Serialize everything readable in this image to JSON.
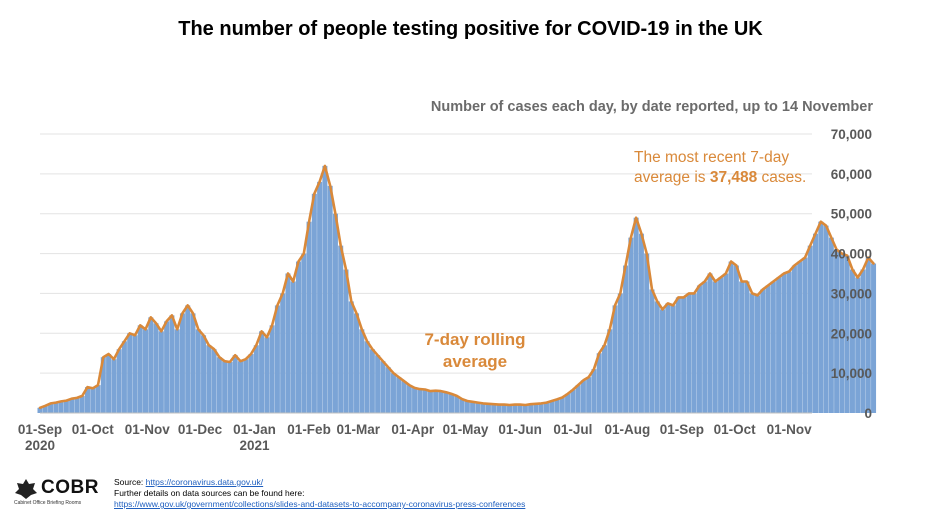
{
  "title": "The number of people testing positive for COVID-19 in the UK",
  "subtitle": "Number of cases each day, by date reported, up to 14 November",
  "annotations": {
    "recent_pre": "The most recent 7-day average is ",
    "recent_value": "37,488",
    "recent_post": " cases.",
    "rolling": "7-day rolling average"
  },
  "footer": {
    "source_label": "Source: ",
    "source_link": "https://coronavirus.data.gov.uk/",
    "details": "Further details on data sources can be found here:",
    "details_link": "https://www.gov.uk/government/collections/slides-and-datasets-to-accompany-coronavirus-press-conferences"
  },
  "logo": {
    "name": "COBR",
    "tagline": "Cabinet Office Briefing Rooms"
  },
  "colors": {
    "bars": "#7ba4d6",
    "line": "#d9893a",
    "grid": "#e3e3e3",
    "axis_text": "#595959"
  },
  "chart_data": {
    "type": "bar",
    "title": "The number of people testing positive for COVID-19 in the UK",
    "subtitle": "Number of cases each day, by date reported, up to 14 November",
    "xlabel": "",
    "ylabel": "",
    "ylim": [
      0,
      70000
    ],
    "y_ticks": [
      0,
      10000,
      20000,
      30000,
      40000,
      50000,
      60000,
      70000
    ],
    "y_tick_labels": [
      "0",
      "10,000",
      "20,000",
      "30,000",
      "40,000",
      "50,000",
      "60,000",
      "70,000"
    ],
    "x_tick_labels": [
      {
        "label": "01-Sep",
        "year": "2020",
        "date": "2020-09-01"
      },
      {
        "label": "01-Oct",
        "year": "",
        "date": "2020-10-01"
      },
      {
        "label": "01-Nov",
        "year": "",
        "date": "2020-11-01"
      },
      {
        "label": "01-Dec",
        "year": "",
        "date": "2020-12-01"
      },
      {
        "label": "01-Jan",
        "year": "2021",
        "date": "2021-01-01"
      },
      {
        "label": "01-Feb",
        "year": "",
        "date": "2021-02-01"
      },
      {
        "label": "01-Mar",
        "year": "",
        "date": "2021-03-01"
      },
      {
        "label": "01-Apr",
        "year": "",
        "date": "2021-04-01"
      },
      {
        "label": "01-May",
        "year": "",
        "date": "2021-05-01"
      },
      {
        "label": "01-Jun",
        "year": "",
        "date": "2021-06-01"
      },
      {
        "label": "01-Jul",
        "year": "",
        "date": "2021-07-01"
      },
      {
        "label": "01-Aug",
        "year": "",
        "date": "2021-08-01"
      },
      {
        "label": "01-Sep",
        "year": "",
        "date": "2021-09-01"
      },
      {
        "label": "01-Oct",
        "year": "",
        "date": "2021-10-01"
      },
      {
        "label": "01-Nov",
        "year": "",
        "date": "2021-11-01"
      }
    ],
    "x_range": [
      "2020-09-01",
      "2021-11-14"
    ],
    "series": [
      {
        "name": "Daily cases (by date reported)",
        "kind": "bar",
        "sampling": "one value every 3 days from 2020-09-01",
        "values": [
          1300,
          1800,
          2400,
          2600,
          2900,
          3100,
          3600,
          3800,
          4300,
          6500,
          6200,
          7000,
          14000,
          14800,
          13500,
          16000,
          18000,
          20000,
          19500,
          22000,
          21000,
          24000,
          22500,
          20500,
          23000,
          24500,
          21000,
          25000,
          27000,
          25000,
          21000,
          19500,
          17000,
          16000,
          14000,
          13000,
          12800,
          14500,
          13000,
          13500,
          14800,
          17000,
          20500,
          19000,
          22000,
          27000,
          30000,
          35000,
          33000,
          38000,
          40000,
          48000,
          55000,
          58000,
          62000,
          57000,
          50000,
          42000,
          36000,
          28000,
          25000,
          21000,
          18000,
          16000,
          14500,
          13000,
          11500,
          10000,
          9000,
          8000,
          7000,
          6300,
          6000,
          5900,
          5500,
          5600,
          5500,
          5200,
          4800,
          4300,
          3500,
          3000,
          2800,
          2600,
          2400,
          2300,
          2200,
          2100,
          2100,
          2000,
          2100,
          2100,
          2000,
          2200,
          2300,
          2400,
          2600,
          3000,
          3400,
          3900,
          4800,
          5800,
          7000,
          8200,
          9000,
          11000,
          15000,
          17000,
          21000,
          27000,
          30000,
          37000,
          44000,
          49000,
          45000,
          40000,
          31000,
          28000,
          26000,
          27500,
          27000,
          29000,
          29000,
          30000,
          30000,
          32000,
          33000,
          35000,
          33000,
          34000,
          35000,
          38000,
          37000,
          33000,
          33000,
          30000,
          29500,
          31000,
          32000,
          33000,
          34000,
          35000,
          35500,
          37000,
          38000,
          39000,
          42000,
          45000,
          48000,
          47000,
          44000,
          41000,
          40000,
          39500,
          36000,
          34000,
          36000,
          39000,
          37500
        ]
      },
      {
        "name": "7-day rolling average",
        "kind": "line",
        "sampling": "one value every 3 days from 2020-09-01",
        "values": [
          1300,
          1800,
          2400,
          2600,
          2900,
          3100,
          3600,
          3800,
          4300,
          6500,
          6200,
          7000,
          14000,
          14800,
          13500,
          16000,
          18000,
          20000,
          19500,
          22000,
          21000,
          24000,
          22500,
          20500,
          23000,
          24500,
          21000,
          25000,
          27000,
          25000,
          21000,
          19500,
          17000,
          16000,
          14000,
          13000,
          12800,
          14500,
          13000,
          13500,
          14800,
          17000,
          20500,
          19000,
          22000,
          27000,
          30000,
          35000,
          33000,
          38000,
          40000,
          48000,
          55000,
          58000,
          62000,
          57000,
          50000,
          42000,
          36000,
          28000,
          25000,
          21000,
          18000,
          16000,
          14500,
          13000,
          11500,
          10000,
          9000,
          8000,
          7000,
          6300,
          6000,
          5900,
          5500,
          5600,
          5500,
          5200,
          4800,
          4300,
          3500,
          3000,
          2800,
          2600,
          2400,
          2300,
          2200,
          2100,
          2100,
          2000,
          2100,
          2100,
          2000,
          2200,
          2300,
          2400,
          2600,
          3000,
          3400,
          3900,
          4800,
          5800,
          7000,
          8200,
          9000,
          11000,
          15000,
          17000,
          21000,
          27000,
          30000,
          37000,
          44000,
          49000,
          45000,
          40000,
          31000,
          28000,
          26000,
          27500,
          27000,
          29000,
          29000,
          30000,
          30000,
          32000,
          33000,
          35000,
          33000,
          34000,
          35000,
          38000,
          37000,
          33000,
          33000,
          30000,
          29500,
          31000,
          32000,
          33000,
          34000,
          35000,
          35500,
          37000,
          38000,
          39000,
          42000,
          45000,
          48000,
          47000,
          44000,
          41000,
          40000,
          39500,
          36000,
          34000,
          36000,
          39000,
          37500
        ]
      }
    ],
    "latest_7day_average": 37488,
    "legend": "none"
  }
}
